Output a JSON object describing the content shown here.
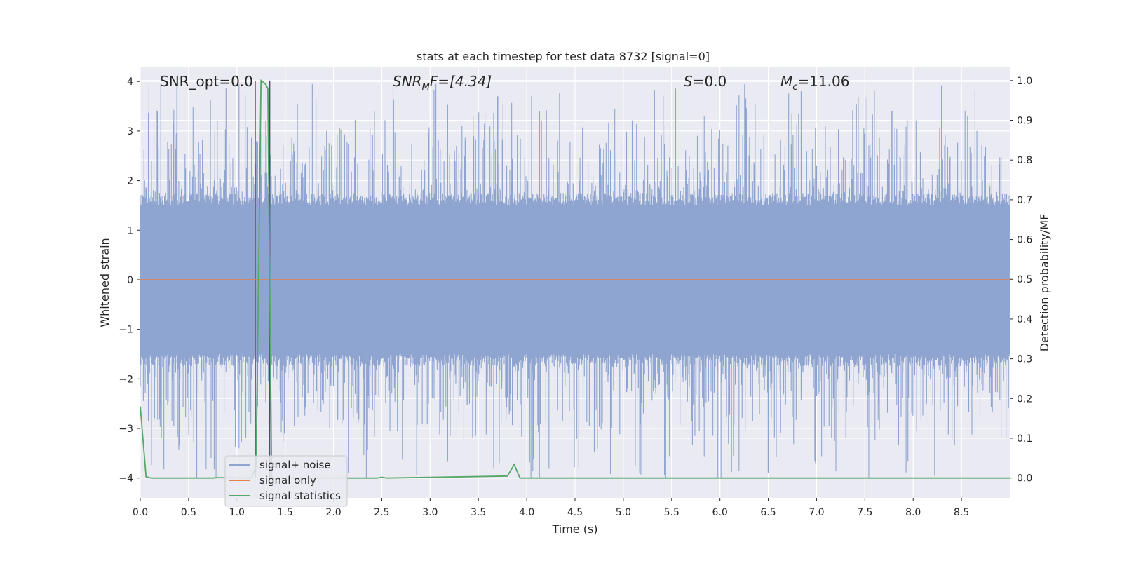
{
  "chart_data": {
    "type": "line",
    "title": "stats at each timestep for test data 8732 [signal=0]",
    "xlabel": "Time (s)",
    "ylabel": "Whitened strain",
    "ylabel_right": "Detection probability/MF",
    "xlim": [
      0.0,
      9.0
    ],
    "ylim": [
      -4.4,
      4.3
    ],
    "ylim_right": [
      -0.05,
      1.035
    ],
    "x_ticks": [
      "0.0",
      "0.5",
      "1.0",
      "1.5",
      "2.0",
      "2.5",
      "3.0",
      "3.5",
      "4.0",
      "4.5",
      "5.0",
      "5.5",
      "6.0",
      "6.5",
      "7.0",
      "7.5",
      "8.0",
      "8.5"
    ],
    "y_ticks": [
      "4",
      "3",
      "2",
      "1",
      "0",
      "−1",
      "−2",
      "−3",
      "−4"
    ],
    "y_ticks_right": [
      "1.0",
      "0.9",
      "0.8",
      "0.7",
      "0.6",
      "0.5",
      "0.4",
      "0.3",
      "0.2",
      "0.1",
      "0.0"
    ],
    "annotations": {
      "snr_opt": "SNR_opt=0.0",
      "snr_mf_base": "SNR",
      "snr_mf_sub": "M",
      "snr_mf_rest": "F=[4.34]",
      "s_label": "S",
      "s_rest": "=0.0",
      "mc_base": "M",
      "mc_sub": "c",
      "mc_rest": "=11.06"
    },
    "legend": {
      "position": "lower-left",
      "entries": [
        {
          "label": "signal+ noise",
          "color": "#8fa5d0"
        },
        {
          "label": "signal only",
          "color": "#dd8452"
        },
        {
          "label": "signal statistics",
          "color": "#55a868"
        }
      ]
    },
    "series": [
      {
        "name": "signal+ noise",
        "kind": "noise",
        "color": "#8fa5d0",
        "envelope": {
          "core_low": -1.5,
          "core_high": 1.5,
          "peak_max": 3.95,
          "trough_min": -4.0
        },
        "notable_peaks": [
          {
            "x": 0.38,
            "y": 3.95
          },
          {
            "x": 1.3,
            "y": 3.2
          },
          {
            "x": 3.7,
            "y": 3.7
          },
          {
            "x": 6.5,
            "y": -3.9
          },
          {
            "x": 4.13,
            "y": -4.0
          },
          {
            "x": 7.78,
            "y": 3.4
          }
        ]
      },
      {
        "name": "signal only",
        "kind": "line",
        "color": "#dd8452",
        "x": [
          0.0,
          9.0
        ],
        "y": [
          0.0,
          0.0
        ]
      },
      {
        "name": "signal statistics",
        "kind": "line",
        "axis": "right",
        "color": "#55a868",
        "x": [
          0.0,
          0.06,
          0.12,
          0.75,
          0.8,
          1.15,
          1.2,
          1.25,
          1.3,
          1.32,
          1.36,
          1.4,
          2.45,
          2.5,
          2.55,
          3.8,
          3.87,
          3.93,
          9.0
        ],
        "y": [
          0.18,
          0.003,
          0.0,
          0.0,
          0.001,
          0.0,
          0.03,
          1.0,
          0.99,
          0.98,
          0.0,
          0.0,
          0.0,
          0.002,
          0.0,
          0.005,
          0.034,
          0.0,
          0.0
        ]
      }
    ],
    "vertical_markers": [
      {
        "x": 1.19,
        "color": "#6b4c4c"
      },
      {
        "x": 1.34,
        "color": "#4c4c6b"
      }
    ]
  }
}
